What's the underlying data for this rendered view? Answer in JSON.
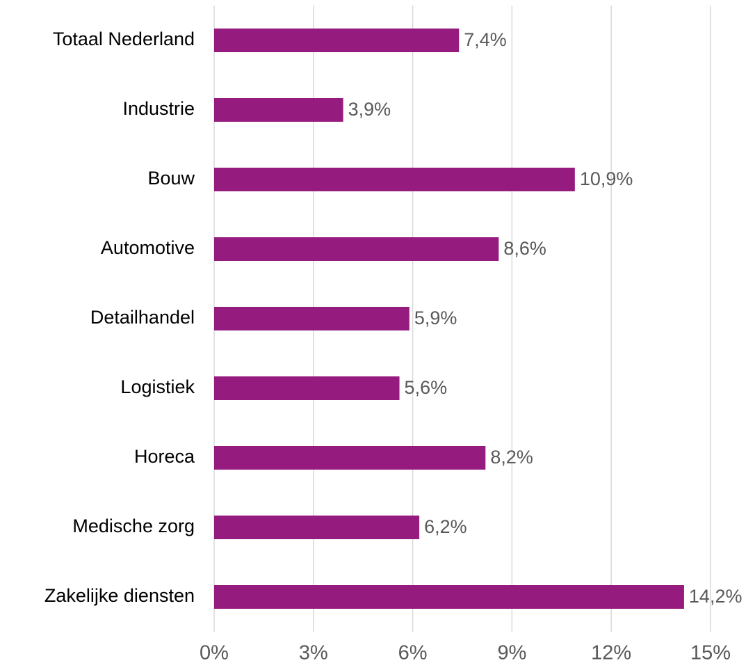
{
  "chart_data": {
    "type": "bar",
    "orientation": "horizontal",
    "categories": [
      "Totaal Nederland",
      "Industrie",
      "Bouw",
      "Automotive",
      "Detailhandel",
      "Logistiek",
      "Horeca",
      "Medische zorg",
      "Zakelijke diensten"
    ],
    "values": [
      7.4,
      3.9,
      10.9,
      8.6,
      5.9,
      5.6,
      8.2,
      6.2,
      14.2
    ],
    "value_labels": [
      "7,4%",
      "3,9%",
      "10,9%",
      "8,6%",
      "5,9%",
      "5,6%",
      "8,2%",
      "6,2%",
      "14,2%"
    ],
    "color": "#961b7f",
    "xlim": [
      0,
      15
    ],
    "xticks": [
      {
        "value": 0,
        "label": "0%"
      },
      {
        "value": 3,
        "label": "3%"
      },
      {
        "value": 6,
        "label": "6%"
      },
      {
        "value": 9,
        "label": "9%"
      },
      {
        "value": 12,
        "label": "12%"
      },
      {
        "value": 15,
        "label": "15%"
      }
    ],
    "grid": true
  }
}
